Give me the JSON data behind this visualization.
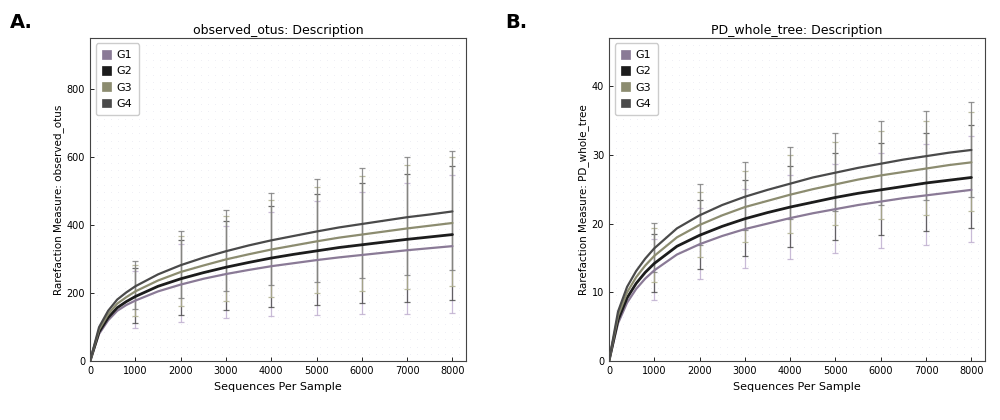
{
  "title_A": "observed_otus: Description",
  "title_B": "PD_whole_tree: Description",
  "xlabel": "Sequences Per Sample",
  "ylabel_A": "Rarefaction Measure: observed_otus",
  "ylabel_B": "Rarefaction Measure: PD_whole_tree",
  "label_A": "A.",
  "label_B": "B.",
  "groups": [
    "G1",
    "G2",
    "G3",
    "G4"
  ],
  "group_colors": [
    "#8a7a96",
    "#1c1c1c",
    "#8c8c70",
    "#4a4a4a"
  ],
  "legend_colors": [
    "#8a7a96",
    "#1c1c1c",
    "#8c8c70",
    "#4a4a4a"
  ],
  "x_ticks": [
    0,
    1000,
    2000,
    3000,
    4000,
    5000,
    6000,
    7000,
    8000
  ],
  "x_max": 8300,
  "curve_x": [
    0,
    200,
    400,
    600,
    800,
    1000,
    1500,
    2000,
    2500,
    3000,
    3500,
    4000,
    4500,
    5000,
    5500,
    6000,
    6500,
    7000,
    7500,
    8000
  ],
  "A_curves": {
    "G1": [
      0,
      80,
      120,
      148,
      165,
      178,
      205,
      225,
      242,
      256,
      268,
      279,
      288,
      297,
      305,
      312,
      319,
      326,
      332,
      338
    ],
    "G2": [
      0,
      86,
      128,
      157,
      175,
      190,
      220,
      242,
      260,
      276,
      290,
      303,
      314,
      324,
      334,
      342,
      350,
      358,
      365,
      372
    ],
    "G3": [
      0,
      93,
      138,
      169,
      188,
      205,
      237,
      262,
      281,
      299,
      314,
      328,
      340,
      352,
      363,
      372,
      381,
      390,
      398,
      406
    ],
    "G4": [
      0,
      100,
      148,
      181,
      202,
      220,
      255,
      282,
      304,
      323,
      340,
      355,
      368,
      381,
      393,
      403,
      413,
      423,
      431,
      440
    ]
  },
  "A_err_upper": {
    "G1": [
      0,
      45,
      62,
      72,
      80,
      88,
      105,
      118,
      130,
      140,
      150,
      158,
      165,
      173,
      180,
      186,
      192,
      198,
      204,
      208
    ],
    "G2": [
      0,
      42,
      58,
      68,
      76,
      83,
      100,
      113,
      125,
      135,
      144,
      153,
      160,
      168,
      175,
      181,
      187,
      193,
      199,
      202
    ],
    "G3": [
      0,
      38,
      54,
      64,
      71,
      78,
      95,
      107,
      119,
      128,
      137,
      146,
      153,
      161,
      167,
      173,
      179,
      185,
      191,
      194
    ],
    "G4": [
      0,
      34,
      50,
      60,
      67,
      73,
      89,
      101,
      113,
      122,
      130,
      139,
      146,
      154,
      160,
      166,
      172,
      178,
      184,
      178
    ]
  },
  "A_err_lower": {
    "G1": [
      0,
      38,
      55,
      65,
      73,
      80,
      96,
      109,
      120,
      130,
      139,
      147,
      154,
      162,
      168,
      174,
      180,
      186,
      192,
      196
    ],
    "G2": [
      0,
      35,
      52,
      62,
      70,
      77,
      93,
      106,
      117,
      127,
      136,
      144,
      151,
      159,
      165,
      171,
      177,
      183,
      189,
      193
    ],
    "G3": [
      0,
      32,
      48,
      58,
      66,
      73,
      88,
      101,
      112,
      121,
      130,
      138,
      145,
      153,
      159,
      165,
      171,
      177,
      183,
      186
    ],
    "G4": [
      0,
      28,
      44,
      54,
      62,
      68,
      83,
      96,
      107,
      116,
      124,
      132,
      139,
      147,
      153,
      159,
      165,
      171,
      177,
      171
    ]
  },
  "B_curves": {
    "G1": [
      0,
      5.5,
      8.5,
      10.5,
      12.0,
      13.2,
      15.5,
      17.0,
      18.2,
      19.2,
      20.0,
      20.8,
      21.5,
      22.1,
      22.7,
      23.2,
      23.7,
      24.1,
      24.5,
      24.9
    ],
    "G2": [
      0,
      6.0,
      9.2,
      11.3,
      12.9,
      14.2,
      16.7,
      18.3,
      19.6,
      20.7,
      21.6,
      22.4,
      23.1,
      23.8,
      24.4,
      24.9,
      25.4,
      25.9,
      26.3,
      26.7
    ],
    "G3": [
      0,
      6.6,
      10.0,
      12.2,
      13.9,
      15.3,
      18.0,
      19.8,
      21.2,
      22.4,
      23.3,
      24.2,
      25.0,
      25.7,
      26.4,
      27.0,
      27.5,
      28.0,
      28.5,
      28.9
    ],
    "G4": [
      0,
      7.2,
      10.8,
      13.1,
      14.9,
      16.4,
      19.3,
      21.2,
      22.7,
      23.9,
      24.9,
      25.8,
      26.7,
      27.4,
      28.1,
      28.7,
      29.3,
      29.8,
      30.3,
      30.7
    ]
  },
  "B_err_upper": {
    "G1": [
      0,
      3.0,
      3.8,
      4.0,
      4.3,
      4.5,
      5.0,
      5.3,
      5.5,
      5.8,
      6.0,
      6.2,
      6.4,
      6.6,
      6.8,
      7.0,
      7.2,
      7.4,
      7.6,
      7.8
    ],
    "G2": [
      0,
      2.8,
      3.6,
      3.8,
      4.1,
      4.3,
      4.8,
      5.1,
      5.3,
      5.6,
      5.8,
      6.0,
      6.2,
      6.4,
      6.6,
      6.8,
      7.0,
      7.2,
      7.4,
      7.6
    ],
    "G3": [
      0,
      2.5,
      3.3,
      3.5,
      3.8,
      4.0,
      4.5,
      4.8,
      5.0,
      5.3,
      5.5,
      5.7,
      5.9,
      6.1,
      6.3,
      6.5,
      6.7,
      6.9,
      7.1,
      7.3
    ],
    "G4": [
      0,
      2.2,
      3.0,
      3.2,
      3.5,
      3.7,
      4.2,
      4.5,
      4.7,
      5.0,
      5.2,
      5.4,
      5.6,
      5.8,
      6.0,
      6.2,
      6.4,
      6.6,
      6.8,
      7.0
    ]
  },
  "B_err_lower": {
    "G1": [
      0,
      2.8,
      3.6,
      3.8,
      4.1,
      4.3,
      4.8,
      5.1,
      5.3,
      5.6,
      5.8,
      6.0,
      6.2,
      6.4,
      6.6,
      6.8,
      7.0,
      7.2,
      7.4,
      7.6
    ],
    "G2": [
      0,
      2.6,
      3.4,
      3.6,
      3.9,
      4.1,
      4.6,
      4.9,
      5.1,
      5.4,
      5.6,
      5.8,
      6.0,
      6.2,
      6.4,
      6.6,
      6.8,
      7.0,
      7.2,
      7.4
    ],
    "G3": [
      0,
      2.3,
      3.1,
      3.3,
      3.6,
      3.8,
      4.3,
      4.6,
      4.8,
      5.1,
      5.3,
      5.5,
      5.7,
      5.9,
      6.1,
      6.3,
      6.5,
      6.7,
      6.9,
      7.1
    ],
    "G4": [
      0,
      2.0,
      2.8,
      3.0,
      3.3,
      3.5,
      4.0,
      4.3,
      4.5,
      4.8,
      5.0,
      5.2,
      5.4,
      5.6,
      5.8,
      6.0,
      6.2,
      6.4,
      6.6,
      6.8
    ]
  },
  "A_ylim": [
    0,
    950
  ],
  "B_ylim": [
    0,
    47
  ],
  "A_yticks": [
    0,
    200,
    400,
    600,
    800
  ],
  "B_yticks": [
    0,
    10,
    20,
    30,
    40
  ],
  "err_x_indices": [
    5,
    7,
    9,
    11,
    13,
    15,
    17,
    19
  ],
  "err_colors": [
    "#c0b0d0",
    "#505050",
    "#b0b090",
    "#808080"
  ],
  "background_color": "#ffffff",
  "dot_color": "#d8d8e8",
  "dot_alpha": 0.6
}
